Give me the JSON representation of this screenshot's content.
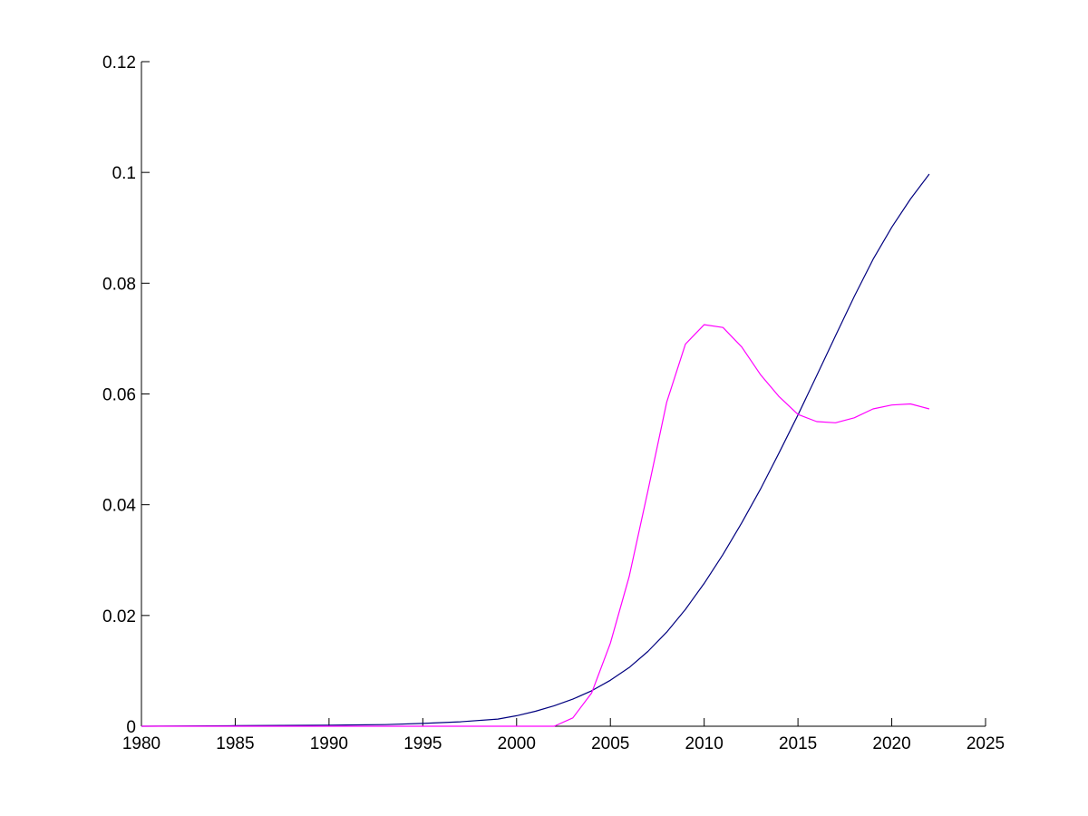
{
  "chart_data": {
    "type": "line",
    "title": "",
    "xlabel": "",
    "ylabel": "",
    "xlim": [
      1980,
      2025
    ],
    "ylim": [
      0,
      0.12
    ],
    "grid": false,
    "legend": "none",
    "x_ticks": [
      "1980",
      "1985",
      "1990",
      "1995",
      "2000",
      "2005",
      "2010",
      "2015",
      "2020",
      "2025"
    ],
    "y_ticks": [
      "0",
      "0.02",
      "0.04",
      "0.06",
      "0.08",
      "0.1",
      "0.12"
    ],
    "x_tick_values": [
      1980,
      1985,
      1990,
      1995,
      2000,
      2005,
      2010,
      2015,
      2020,
      2025
    ],
    "y_tick_values": [
      0,
      0.02,
      0.04,
      0.06,
      0.08,
      0.1,
      0.12
    ],
    "series": [
      {
        "color": "#00007f",
        "x": [
          1980,
          1985,
          1990,
          1993,
          1995,
          1997,
          1999,
          2000,
          2001,
          2002,
          2003,
          2004,
          2005,
          2006,
          2007,
          2008,
          2009,
          2010,
          2011,
          2012,
          2013,
          2014,
          2015,
          2016,
          2017,
          2018,
          2019,
          2020,
          2021,
          2022
        ],
        "values": [
          0,
          0.0001,
          0.0002,
          0.0003,
          0.0005,
          0.0008,
          0.0013,
          0.0019,
          0.0027,
          0.0037,
          0.0049,
          0.0064,
          0.0083,
          0.0106,
          0.0135,
          0.017,
          0.0211,
          0.0258,
          0.031,
          0.0367,
          0.0428,
          0.0494,
          0.0562,
          0.0633,
          0.0705,
          0.0776,
          0.0843,
          0.0901,
          0.0952,
          0.0997
        ]
      },
      {
        "color": "#ff00ff",
        "x": [
          1980,
          1985,
          1990,
          1995,
          2000,
          2002,
          2003,
          2004,
          2005,
          2006,
          2007,
          2008,
          2009,
          2010,
          2011,
          2012,
          2013,
          2014,
          2015,
          2016,
          2017,
          2018,
          2019,
          2020,
          2021,
          2022
        ],
        "values": [
          0,
          0,
          0,
          0,
          0,
          0,
          0.0015,
          0.006,
          0.015,
          0.027,
          0.0425,
          0.0585,
          0.069,
          0.0725,
          0.072,
          0.0685,
          0.0635,
          0.0595,
          0.0563,
          0.055,
          0.0548,
          0.0557,
          0.0573,
          0.058,
          0.0582,
          0.0573
        ]
      }
    ]
  }
}
